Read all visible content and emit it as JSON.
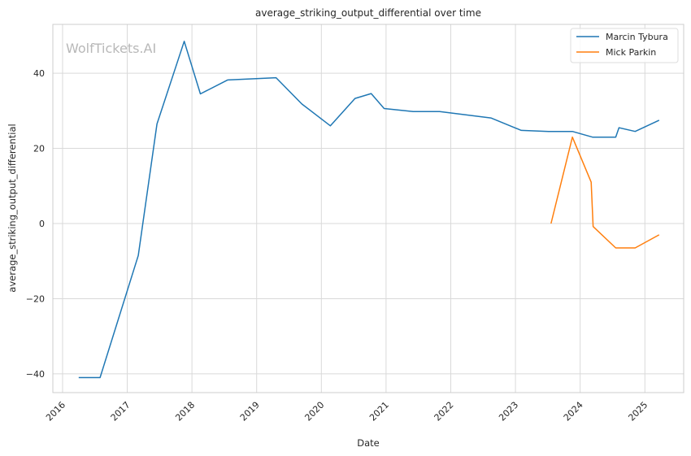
{
  "chart_data": {
    "type": "line",
    "title": "average_striking_output_differential over time",
    "xlabel": "Date",
    "ylabel": "average_striking_output_differential",
    "watermark": "WolfTickets.AI",
    "xlim": [
      2015.85,
      2025.6
    ],
    "ylim": [
      -45,
      53
    ],
    "x_ticks": [
      2016,
      2017,
      2018,
      2019,
      2020,
      2021,
      2022,
      2023,
      2024,
      2025
    ],
    "x_tick_labels": [
      "2016",
      "2017",
      "2018",
      "2019",
      "2020",
      "2021",
      "2022",
      "2023",
      "2024",
      "2025"
    ],
    "y_ticks": [
      -40,
      -20,
      0,
      20,
      40
    ],
    "y_tick_labels": [
      "−40",
      "−20",
      "0",
      "20",
      "40"
    ],
    "grid": true,
    "legend_position": "top-right",
    "series": [
      {
        "name": "Marcin Tybura",
        "color": "#1f77b4",
        "points": [
          [
            2016.25,
            -41
          ],
          [
            2016.58,
            -41
          ],
          [
            2017.17,
            -8.5
          ],
          [
            2017.46,
            26.5
          ],
          [
            2017.88,
            48.5
          ],
          [
            2018.13,
            34.5
          ],
          [
            2018.55,
            38.2
          ],
          [
            2019.3,
            38.8
          ],
          [
            2019.7,
            31.8
          ],
          [
            2020.14,
            26.0
          ],
          [
            2020.52,
            33.3
          ],
          [
            2020.77,
            34.6
          ],
          [
            2020.97,
            30.6
          ],
          [
            2021.42,
            29.8
          ],
          [
            2021.83,
            29.8
          ],
          [
            2022.62,
            28.1
          ],
          [
            2023.09,
            24.8
          ],
          [
            2023.51,
            24.5
          ],
          [
            2023.88,
            24.5
          ],
          [
            2024.19,
            23.0
          ],
          [
            2024.55,
            23.0
          ],
          [
            2024.6,
            25.5
          ],
          [
            2024.85,
            24.5
          ],
          [
            2025.22,
            27.5
          ]
        ]
      },
      {
        "name": "Mick Parkin",
        "color": "#ff7f0e",
        "points": [
          [
            2023.55,
            0.0
          ],
          [
            2023.88,
            23.0
          ],
          [
            2024.17,
            11.0
          ],
          [
            2024.2,
            -0.8
          ],
          [
            2024.55,
            -6.5
          ],
          [
            2024.85,
            -6.5
          ],
          [
            2025.22,
            -3.0
          ]
        ]
      }
    ]
  }
}
